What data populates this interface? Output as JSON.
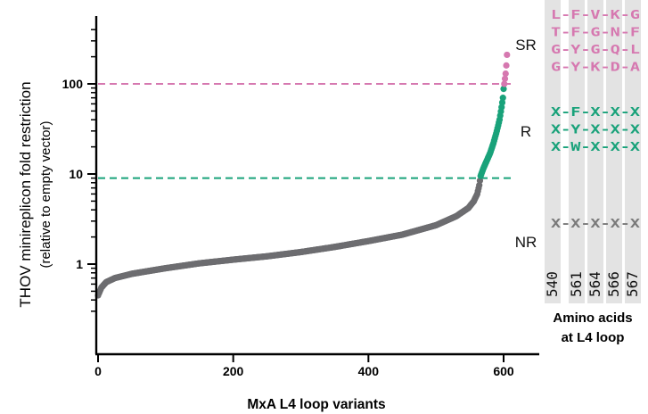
{
  "chart_data": {
    "type": "scatter",
    "xlabel": "MxA L4 loop variants",
    "ylabel": "THOV minireplicon fold restriction",
    "ylabel_sub": "(relative to empty vector)",
    "x_ticks": [
      "0",
      "200",
      "400",
      "600"
    ],
    "y_ticks": [
      "1",
      "10",
      "100"
    ],
    "xlim": [
      0,
      660
    ],
    "ylim": [
      0.25,
      450
    ],
    "y_scale": "log",
    "thresholds": [
      {
        "name": "SR",
        "y": 100,
        "color": "#d678b0"
      },
      {
        "name": "R",
        "y": 9,
        "color": "#19a27a"
      }
    ],
    "category_labels": [
      "SR",
      "R",
      "NR"
    ],
    "curve_anchors": [
      [
        0,
        0.45
      ],
      [
        5,
        0.55
      ],
      [
        12,
        0.63
      ],
      [
        25,
        0.7
      ],
      [
        50,
        0.78
      ],
      [
        100,
        0.9
      ],
      [
        150,
        1.02
      ],
      [
        200,
        1.12
      ],
      [
        250,
        1.22
      ],
      [
        300,
        1.36
      ],
      [
        350,
        1.55
      ],
      [
        400,
        1.8
      ],
      [
        450,
        2.12
      ],
      [
        500,
        2.7
      ],
      [
        530,
        3.4
      ],
      [
        548,
        4.2
      ],
      [
        556,
        5.0
      ],
      [
        561,
        6.0
      ],
      [
        564,
        7.5
      ],
      [
        566,
        9.5
      ],
      [
        570,
        11.5
      ],
      [
        575,
        14
      ],
      [
        580,
        17
      ],
      [
        585,
        22
      ],
      [
        590,
        30
      ],
      [
        594,
        40
      ],
      [
        597,
        55
      ],
      [
        599,
        70
      ],
      [
        600,
        88
      ],
      [
        601,
        100
      ],
      [
        603,
        130
      ],
      [
        604,
        160
      ],
      [
        605,
        210
      ]
    ],
    "point_count": 606,
    "series": [
      {
        "name": "NR",
        "color": "#6d6d70"
      },
      {
        "name": "R",
        "color": "#19a27a"
      },
      {
        "name": "SR",
        "color": "#d678b0"
      }
    ]
  },
  "amino_acid_panel": {
    "title_line1": "Amino acids",
    "title_line2": "at L4 loop",
    "positions": [
      "540",
      "561",
      "564",
      "566",
      "567"
    ],
    "sr_sequences": [
      "L-F-V-K-G",
      "T-F-G-N-F",
      "G-Y-G-Q-L",
      "G-Y-K-D-A"
    ],
    "r_sequences": [
      "X-F-X-X-X",
      "X-Y-X-X-X",
      "X-W-X-X-X"
    ],
    "nr_sequences": [
      "X-X-X-X-X"
    ],
    "colors": {
      "sr": "#d678b0",
      "r": "#19a27a",
      "nr": "#7a7a7a",
      "column": "#e3e3e3"
    }
  }
}
